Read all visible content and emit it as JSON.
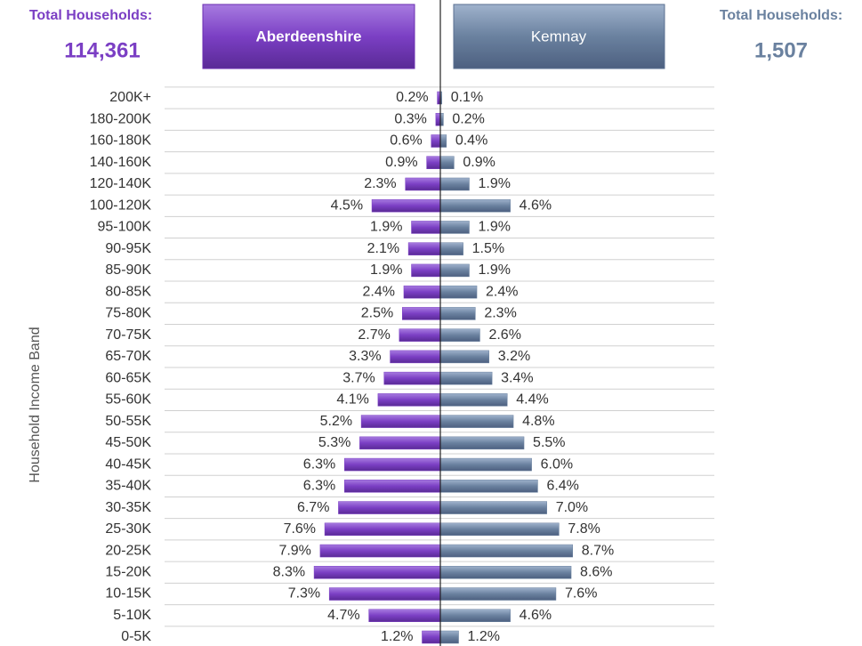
{
  "chart_data": {
    "type": "butterfly-bar",
    "y_label": "Household Income Band",
    "total_caption": "Total Households:",
    "categories": [
      "200K+",
      "180-200K",
      "160-180K",
      "140-160K",
      "120-140K",
      "100-120K",
      "95-100K",
      "90-95K",
      "85-90K",
      "80-85K",
      "75-80K",
      "70-75K",
      "65-70K",
      "60-65K",
      "55-60K",
      "50-55K",
      "45-50K",
      "40-45K",
      "35-40K",
      "30-35K",
      "25-30K",
      "20-25K",
      "15-20K",
      "10-15K",
      "5-10K",
      "0-5K"
    ],
    "series": [
      {
        "name": "Aberdeenshire",
        "color": "#7b3fc4",
        "total_label": "114,361",
        "values": [
          0.2,
          0.3,
          0.6,
          0.9,
          2.3,
          4.5,
          1.9,
          2.1,
          1.9,
          2.4,
          2.5,
          2.7,
          3.3,
          3.7,
          4.1,
          5.2,
          5.3,
          6.3,
          6.3,
          6.7,
          7.6,
          7.9,
          8.3,
          7.3,
          4.7,
          1.2
        ],
        "value_labels": [
          "0.2%",
          "0.3%",
          "0.6%",
          "0.9%",
          "2.3%",
          "4.5%",
          "1.9%",
          "2.1%",
          "1.9%",
          "2.4%",
          "2.5%",
          "2.7%",
          "3.3%",
          "3.7%",
          "4.1%",
          "5.2%",
          "5.3%",
          "6.3%",
          "6.3%",
          "6.7%",
          "7.6%",
          "7.9%",
          "8.3%",
          "7.3%",
          "4.7%",
          "1.2%"
        ]
      },
      {
        "name": "Kemnay",
        "color": "#6a819f",
        "total_label": "1,507",
        "values": [
          0.1,
          0.2,
          0.4,
          0.9,
          1.9,
          4.6,
          1.9,
          1.5,
          1.9,
          2.4,
          2.3,
          2.6,
          3.2,
          3.4,
          4.4,
          4.8,
          5.5,
          6.0,
          6.4,
          7.0,
          7.8,
          8.7,
          8.6,
          7.6,
          4.6,
          1.2
        ],
        "value_labels": [
          "0.1%",
          "0.2%",
          "0.4%",
          "0.9%",
          "1.9%",
          "4.6%",
          "1.9%",
          "1.5%",
          "1.9%",
          "2.4%",
          "2.3%",
          "2.6%",
          "3.2%",
          "3.4%",
          "4.4%",
          "4.8%",
          "5.5%",
          "6.0%",
          "6.4%",
          "7.0%",
          "7.8%",
          "8.7%",
          "8.6%",
          "7.6%",
          "4.6%",
          "1.2%"
        ]
      }
    ]
  }
}
